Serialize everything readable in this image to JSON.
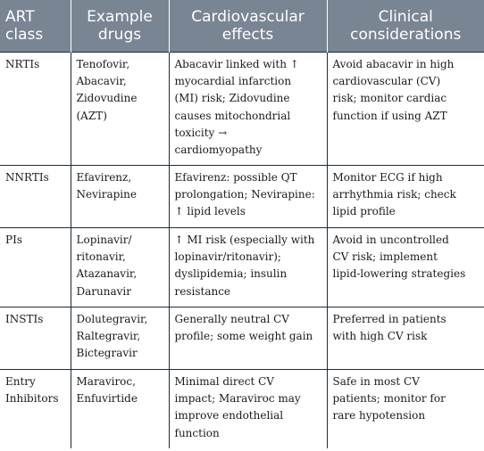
{
  "table": {
    "headers": [
      "ART\nclass",
      "Example\ndrugs",
      "Cardiovascular\neffects",
      "Clinical\nconsiderations"
    ],
    "rows": [
      {
        "cls": "NRTIs",
        "drugs": "Tenofovir,\nAbacavir,\nZidovudine\n(AZT)",
        "effects": "Abacavir linked with ↑\nmyocardial infarction\n(MI) risk; Zidovudine\ncauses mitochondrial\ntoxicity →\ncardiomyopathy",
        "considerations": "Avoid abacavir in high\ncardiovascular (CV)\nrisk; monitor cardiac\nfunction if using AZT"
      },
      {
        "cls": "NNRTIs",
        "drugs": "Efavirenz,\nNevirapine",
        "effects": "Efavirenz: possible QT\nprolongation; Nevirapine:\n↑ lipid levels",
        "considerations": "Monitor ECG if high\narrhythmia risk; check\nlipid profile"
      },
      {
        "cls": "PIs",
        "drugs": "Lopinavir/\nritonavir,\nAtazanavir,\nDarunavir",
        "effects": "↑ MI risk (especially with\nlopinavir/ritonavir);\ndyslipidemia; insulin\nresistance",
        "considerations": "Avoid in uncontrolled\nCV risk; implement\nlipid-lowering strategies"
      },
      {
        "cls": "INSTIs",
        "drugs": "Dolutegravir,\nRaltegravir,\nBictegravir",
        "effects": "Generally neutral CV\nprofile; some weight gain",
        "considerations": "Preferred in patients\nwith high CV risk"
      },
      {
        "cls": "Entry\nInhibitors",
        "drugs": "Maraviroc,\nEnfuvirtide",
        "effects": "Minimal direct CV\nimpact; Maraviroc may\nimprove endothelial\nfunction",
        "considerations": "Safe in most CV\npatients; monitor for\nrare hypotension"
      }
    ]
  }
}
